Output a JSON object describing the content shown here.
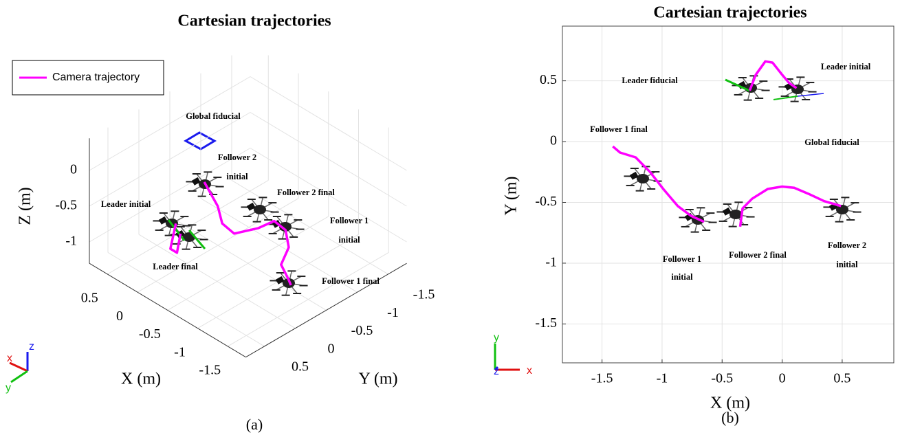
{
  "chart_data": [
    {
      "type": "line3d",
      "title": "Cartesian trajectories",
      "xlabel": "X (m)",
      "ylabel": "Y (m)",
      "zlabel": "Z (m)",
      "caption": "(a)",
      "xlim": [
        -1.8,
        0.8
      ],
      "ylim": [
        -1.8,
        0.8
      ],
      "zlim": [
        -1.3,
        0.45
      ],
      "xticks": [
        -1.5,
        -1,
        -0.5,
        0,
        0.5
      ],
      "yticks": [
        -1.5,
        -1,
        -0.5,
        0,
        0.5
      ],
      "zticks": [
        -1,
        -0.5,
        0
      ],
      "grid": true,
      "legend": "upper left",
      "series": [
        {
          "name": "Camera trajectory",
          "color": "#ff00ff",
          "x": [
            0.35,
            0.04,
            -0.07,
            0.17,
            null,
            0.7,
            0.25,
            -0.03,
            -0.27,
            -0.39,
            -0.42,
            -0.64,
            -0.91,
            -1.09,
            -1.34,
            -1.46
          ],
          "y": [
            -0.16,
            0.23,
            0.23,
            -0.06,
            null,
            -0.96,
            -0.74,
            -0.54,
            -0.5,
            -0.77,
            -1.0,
            -0.97,
            -0.76,
            -0.46,
            -0.33,
            -0.26
          ],
          "z": [
            -1,
            -1,
            -1,
            -1,
            null,
            -1,
            -1,
            -1,
            -1,
            -1,
            -1,
            -1,
            -1,
            -1,
            -1,
            -1
          ]
        }
      ],
      "annotations": [
        "Global fiducial",
        "Follower 2",
        "initial",
        "Follower 2 final",
        "Leader initial",
        "Follower 1",
        "initial",
        "Leader final",
        "Follower 1 final"
      ],
      "frame_labels": [
        "x",
        "y",
        "z"
      ]
    },
    {
      "type": "line",
      "title": "Cartesian trajectories",
      "xlabel": "X (m)",
      "ylabel": "Y (m)",
      "caption": "(b)",
      "xlim": [
        -1.83,
        0.93
      ],
      "ylim": [
        -1.82,
        0.95
      ],
      "xticks": [
        -1.5,
        -1,
        -0.5,
        0,
        0.5
      ],
      "yticks": [
        -1.5,
        -1,
        -0.5,
        0,
        0.5
      ],
      "grid": true,
      "x": [
        -1.41,
        -1.35,
        -1.22,
        -1.1,
        -0.99,
        -0.87,
        -0.76,
        -0.65,
        null,
        -0.35,
        -0.33,
        -0.25,
        -0.12,
        0.0,
        0.1,
        0.22,
        0.35,
        0.49,
        null,
        -0.27,
        -0.22,
        -0.14,
        -0.08,
        0.0,
        0.06,
        0.12
      ],
      "series": [
        {
          "color": "#ff00ff",
          "values": [
            -0.04,
            -0.09,
            -0.13,
            -0.25,
            -0.39,
            -0.53,
            -0.61,
            -0.66,
            null,
            -0.7,
            -0.55,
            -0.47,
            -0.39,
            -0.37,
            -0.38,
            -0.43,
            -0.49,
            -0.53,
            null,
            0.42,
            0.55,
            0.66,
            0.65,
            0.55,
            0.48,
            0.44
          ]
        }
      ],
      "annotations": [
        "Leader fiducial",
        "Leader initial",
        "Follower 1 final",
        "Global fiducial",
        "Follower 1",
        "initial",
        "Follower 2 final",
        "Follower 2",
        "initial"
      ],
      "frame_labels": [
        "x",
        "y",
        "z"
      ]
    }
  ]
}
